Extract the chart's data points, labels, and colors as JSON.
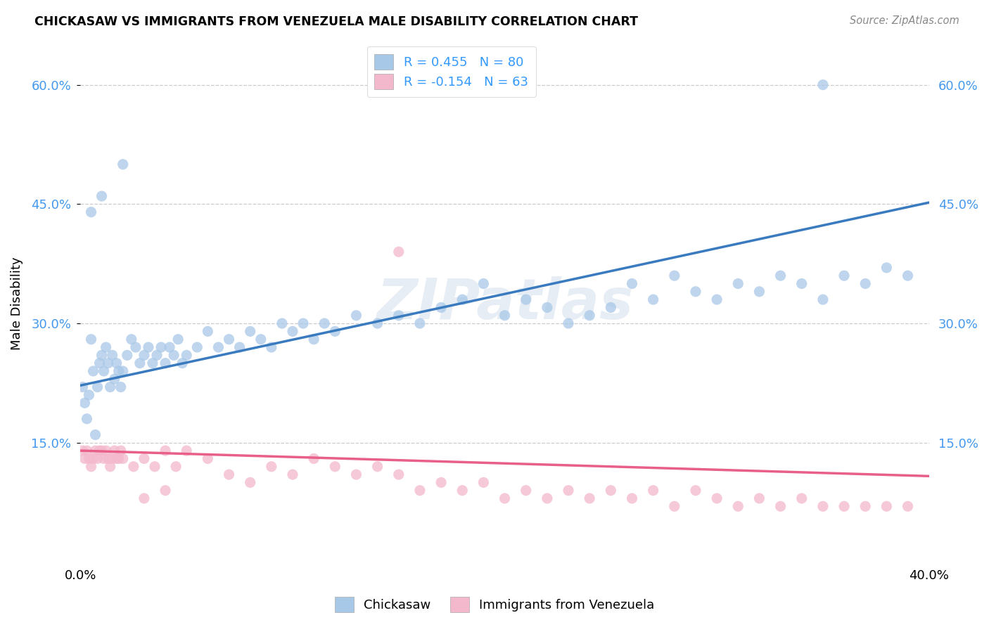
{
  "title": "CHICKASAW VS IMMIGRANTS FROM VENEZUELA MALE DISABILITY CORRELATION CHART",
  "source": "Source: ZipAtlas.com",
  "ylabel": "Male Disability",
  "xmin": 0.0,
  "xmax": 0.4,
  "ymin": 0.0,
  "ymax": 0.65,
  "yticks": [
    0.15,
    0.3,
    0.45,
    0.6
  ],
  "ytick_labels": [
    "15.0%",
    "30.0%",
    "45.0%",
    "60.0%"
  ],
  "xticks": [
    0.0,
    0.1,
    0.2,
    0.3,
    0.4
  ],
  "xtick_labels": [
    "0.0%",
    "",
    "",
    "",
    "40.0%"
  ],
  "watermark": "ZIPatlas",
  "chickasaw_color": "#a8c8e8",
  "venezuela_color": "#f4b8cc",
  "chickasaw_line_color": "#3a7bbf",
  "venezuela_line_color": "#e8608a",
  "R_chickasaw": 0.455,
  "N_chickasaw": 80,
  "R_venezuela": -0.154,
  "N_venezuela": 63,
  "chickasaw_x": [
    0.001,
    0.002,
    0.003,
    0.004,
    0.005,
    0.006,
    0.007,
    0.008,
    0.009,
    0.01,
    0.011,
    0.012,
    0.013,
    0.014,
    0.015,
    0.016,
    0.017,
    0.018,
    0.019,
    0.02,
    0.022,
    0.024,
    0.026,
    0.028,
    0.03,
    0.032,
    0.034,
    0.036,
    0.038,
    0.04,
    0.042,
    0.044,
    0.046,
    0.048,
    0.05,
    0.055,
    0.06,
    0.065,
    0.07,
    0.075,
    0.08,
    0.085,
    0.09,
    0.095,
    0.1,
    0.105,
    0.11,
    0.115,
    0.12,
    0.13,
    0.14,
    0.15,
    0.16,
    0.17,
    0.18,
    0.19,
    0.2,
    0.21,
    0.22,
    0.23,
    0.24,
    0.25,
    0.26,
    0.27,
    0.28,
    0.29,
    0.3,
    0.31,
    0.32,
    0.33,
    0.34,
    0.35,
    0.36,
    0.37,
    0.38,
    0.39,
    0.005,
    0.01,
    0.02,
    0.35
  ],
  "chickasaw_y": [
    0.22,
    0.2,
    0.18,
    0.21,
    0.28,
    0.24,
    0.16,
    0.22,
    0.25,
    0.26,
    0.24,
    0.27,
    0.25,
    0.22,
    0.26,
    0.23,
    0.25,
    0.24,
    0.22,
    0.24,
    0.26,
    0.28,
    0.27,
    0.25,
    0.26,
    0.27,
    0.25,
    0.26,
    0.27,
    0.25,
    0.27,
    0.26,
    0.28,
    0.25,
    0.26,
    0.27,
    0.29,
    0.27,
    0.28,
    0.27,
    0.29,
    0.28,
    0.27,
    0.3,
    0.29,
    0.3,
    0.28,
    0.3,
    0.29,
    0.31,
    0.3,
    0.31,
    0.3,
    0.32,
    0.33,
    0.35,
    0.31,
    0.33,
    0.32,
    0.3,
    0.31,
    0.32,
    0.35,
    0.33,
    0.36,
    0.34,
    0.33,
    0.35,
    0.34,
    0.36,
    0.35,
    0.33,
    0.36,
    0.35,
    0.37,
    0.36,
    0.44,
    0.46,
    0.5,
    0.6
  ],
  "venezuela_x": [
    0.001,
    0.002,
    0.003,
    0.004,
    0.005,
    0.006,
    0.007,
    0.008,
    0.009,
    0.01,
    0.011,
    0.012,
    0.013,
    0.014,
    0.015,
    0.016,
    0.017,
    0.018,
    0.019,
    0.02,
    0.025,
    0.03,
    0.035,
    0.04,
    0.045,
    0.05,
    0.06,
    0.07,
    0.08,
    0.09,
    0.1,
    0.11,
    0.12,
    0.13,
    0.14,
    0.15,
    0.16,
    0.17,
    0.18,
    0.19,
    0.2,
    0.21,
    0.22,
    0.23,
    0.24,
    0.25,
    0.26,
    0.27,
    0.28,
    0.29,
    0.3,
    0.31,
    0.32,
    0.33,
    0.34,
    0.35,
    0.36,
    0.37,
    0.38,
    0.39,
    0.03,
    0.04,
    0.15
  ],
  "venezuela_y": [
    0.14,
    0.13,
    0.14,
    0.13,
    0.12,
    0.13,
    0.14,
    0.13,
    0.14,
    0.14,
    0.13,
    0.14,
    0.13,
    0.12,
    0.13,
    0.14,
    0.13,
    0.13,
    0.14,
    0.13,
    0.12,
    0.13,
    0.12,
    0.14,
    0.12,
    0.14,
    0.13,
    0.11,
    0.1,
    0.12,
    0.11,
    0.13,
    0.12,
    0.11,
    0.12,
    0.11,
    0.09,
    0.1,
    0.09,
    0.1,
    0.08,
    0.09,
    0.08,
    0.09,
    0.08,
    0.09,
    0.08,
    0.09,
    0.07,
    0.09,
    0.08,
    0.07,
    0.08,
    0.07,
    0.08,
    0.07,
    0.07,
    0.07,
    0.07,
    0.07,
    0.08,
    0.09,
    0.39
  ]
}
